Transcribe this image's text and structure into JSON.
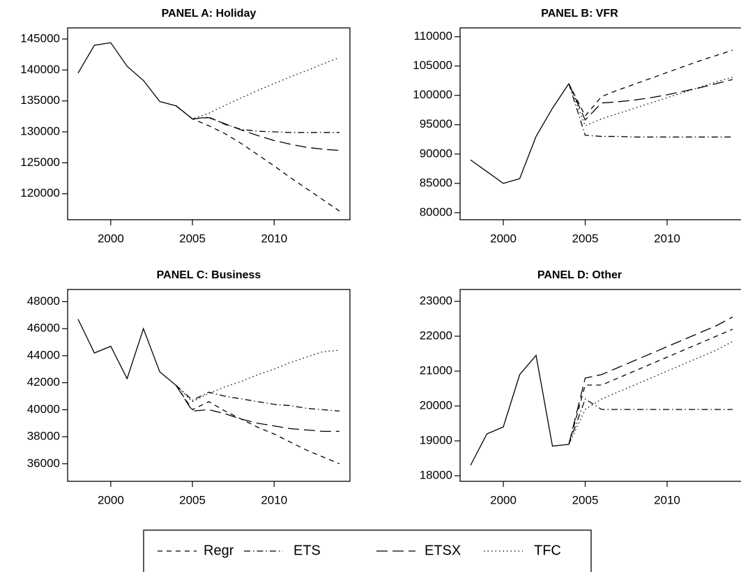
{
  "chart_data": [
    {
      "type": "line",
      "title": "PANEL A: Holiday",
      "x": [
        1998,
        1999,
        2000,
        2001,
        2002,
        2003,
        2004,
        2005,
        2006,
        2007,
        2008,
        2009,
        2010,
        2011,
        2012,
        2013,
        2014
      ],
      "xlim": [
        1997.36,
        2014.64
      ],
      "xticks": [
        2000,
        2005,
        2010
      ],
      "ylim": [
        115800,
        146800
      ],
      "yticks": [
        120000,
        125000,
        130000,
        135000,
        140000,
        145000
      ],
      "series": [
        {
          "color": "#000000",
          "dash": "solid",
          "values": [
            139500,
            144000,
            144400,
            140600,
            138300,
            134900,
            134200,
            null,
            null,
            null,
            null,
            null,
            null,
            null,
            null,
            null,
            null
          ]
        },
        {
          "name": "Regr",
          "color": "#000000",
          "dash": "dashed",
          "values": [
            null,
            null,
            null,
            null,
            null,
            null,
            134200,
            132100,
            131000,
            129700,
            128100,
            126300,
            124500,
            122600,
            120800,
            119000,
            117200
          ]
        },
        {
          "name": "ETS",
          "color": "#000000",
          "dash": "dotdash",
          "values": [
            null,
            null,
            null,
            null,
            null,
            null,
            134200,
            132100,
            132400,
            131200,
            130400,
            130100,
            130000,
            129900,
            129900,
            129900,
            129900
          ]
        },
        {
          "name": "ETSX",
          "color": "#000000",
          "dash": "longdash",
          "values": [
            null,
            null,
            null,
            null,
            null,
            null,
            134200,
            132100,
            132300,
            131300,
            130300,
            129400,
            128600,
            128000,
            127500,
            127200,
            127000
          ]
        },
        {
          "name": "TFC",
          "color": "#000000",
          "dash": "dotted",
          "values": [
            null,
            null,
            null,
            null,
            null,
            null,
            134200,
            132100,
            133000,
            134300,
            135500,
            136700,
            137800,
            138900,
            139900,
            141000,
            142000
          ]
        }
      ]
    },
    {
      "type": "line",
      "title": "PANEL B: VFR",
      "x": [
        1998,
        1999,
        2000,
        2001,
        2002,
        2003,
        2004,
        2005,
        2006,
        2007,
        2008,
        2009,
        2010,
        2011,
        2012,
        2013,
        2014
      ],
      "xlim": [
        1997.36,
        2014.64
      ],
      "xticks": [
        2000,
        2005,
        2010
      ],
      "ylim": [
        78800,
        111500
      ],
      "yticks": [
        80000,
        85000,
        90000,
        95000,
        100000,
        105000,
        110000
      ],
      "series": [
        {
          "color": "#000000",
          "dash": "solid",
          "values": [
            89000,
            87000,
            85000,
            85800,
            93000,
            97800,
            102000,
            null,
            null,
            null,
            null,
            null,
            null,
            null,
            null,
            null,
            null
          ]
        },
        {
          "name": "Regr",
          "color": "#000000",
          "dash": "dashed",
          "values": [
            null,
            null,
            null,
            null,
            null,
            null,
            102000,
            96500,
            99800,
            100900,
            101900,
            102900,
            103900,
            104900,
            105900,
            106800,
            107700
          ]
        },
        {
          "name": "ETS",
          "color": "#000000",
          "dash": "dotdash",
          "values": [
            null,
            null,
            null,
            null,
            null,
            null,
            102000,
            93200,
            93000,
            93000,
            92900,
            92900,
            92900,
            92900,
            92900,
            92900,
            92900
          ]
        },
        {
          "name": "ETSX",
          "color": "#000000",
          "dash": "longdash",
          "values": [
            null,
            null,
            null,
            null,
            null,
            null,
            102000,
            95800,
            98700,
            98900,
            99200,
            99600,
            100100,
            100700,
            101300,
            102000,
            102700
          ]
        },
        {
          "name": "TFC",
          "color": "#000000",
          "dash": "dotted",
          "values": [
            null,
            null,
            null,
            null,
            null,
            null,
            102000,
            94800,
            96000,
            96900,
            97800,
            98700,
            99600,
            100500,
            101400,
            102300,
            103100
          ]
        }
      ]
    },
    {
      "type": "line",
      "title": "PANEL C: Business",
      "x": [
        1998,
        1999,
        2000,
        2001,
        2002,
        2003,
        2004,
        2005,
        2006,
        2007,
        2008,
        2009,
        2010,
        2011,
        2012,
        2013,
        2014
      ],
      "xlim": [
        1997.36,
        2014.64
      ],
      "xticks": [
        2000,
        2005,
        2010
      ],
      "ylim": [
        34700,
        48900
      ],
      "yticks": [
        36000,
        38000,
        40000,
        42000,
        44000,
        46000,
        48000
      ],
      "series": [
        {
          "color": "#000000",
          "dash": "solid",
          "values": [
            46700,
            44200,
            44700,
            42300,
            46000,
            42800,
            41800,
            null,
            null,
            null,
            null,
            null,
            null,
            null,
            null,
            null,
            null
          ]
        },
        {
          "name": "Regr",
          "color": "#000000",
          "dash": "dashed",
          "values": [
            null,
            null,
            null,
            null,
            null,
            null,
            41800,
            40000,
            40600,
            39900,
            39300,
            38700,
            38200,
            37600,
            37000,
            36500,
            36000
          ]
        },
        {
          "name": "ETS",
          "color": "#000000",
          "dash": "dotdash",
          "values": [
            null,
            null,
            null,
            null,
            null,
            null,
            41800,
            40700,
            41300,
            41000,
            40800,
            40600,
            40400,
            40300,
            40100,
            40000,
            39900
          ]
        },
        {
          "name": "ETSX",
          "color": "#000000",
          "dash": "longdash",
          "values": [
            null,
            null,
            null,
            null,
            null,
            null,
            41800,
            39900,
            40000,
            39700,
            39300,
            39000,
            38800,
            38600,
            38500,
            38400,
            38400
          ]
        },
        {
          "name": "TFC",
          "color": "#000000",
          "dash": "dotted",
          "values": [
            null,
            null,
            null,
            null,
            null,
            null,
            41800,
            40600,
            41200,
            41700,
            42100,
            42600,
            43000,
            43500,
            43900,
            44300,
            44400
          ]
        }
      ]
    },
    {
      "type": "line",
      "title": "PANEL D: Other",
      "x": [
        1998,
        1999,
        2000,
        2001,
        2002,
        2003,
        2004,
        2005,
        2006,
        2007,
        2008,
        2009,
        2010,
        2011,
        2012,
        2013,
        2014
      ],
      "xlim": [
        1997.36,
        2014.64
      ],
      "xticks": [
        2000,
        2005,
        2010
      ],
      "ylim": [
        17840,
        23340
      ],
      "yticks": [
        18000,
        19000,
        20000,
        21000,
        22000,
        23000
      ],
      "series": [
        {
          "color": "#000000",
          "dash": "solid",
          "values": [
            18300,
            19200,
            19400,
            20900,
            21450,
            18850,
            18900,
            null,
            null,
            null,
            null,
            null,
            null,
            null,
            null,
            null,
            null
          ]
        },
        {
          "name": "Regr",
          "color": "#000000",
          "dash": "dashed",
          "values": [
            null,
            null,
            null,
            null,
            null,
            null,
            18900,
            20600,
            20600,
            20800,
            21000,
            21200,
            21400,
            21600,
            21800,
            22000,
            22200
          ]
        },
        {
          "name": "ETS",
          "color": "#000000",
          "dash": "dotdash",
          "values": [
            null,
            null,
            null,
            null,
            null,
            null,
            18900,
            20200,
            19900,
            19900,
            19900,
            19900,
            19900,
            19900,
            19900,
            19900,
            19900
          ]
        },
        {
          "name": "ETSX",
          "color": "#000000",
          "dash": "longdash",
          "values": [
            null,
            null,
            null,
            null,
            null,
            null,
            18900,
            20800,
            20900,
            21100,
            21300,
            21500,
            21700,
            21900,
            22100,
            22300,
            22550
          ]
        },
        {
          "name": "TFC",
          "color": "#000000",
          "dash": "dotted",
          "values": [
            null,
            null,
            null,
            null,
            null,
            null,
            18900,
            19900,
            20200,
            20400,
            20600,
            20800,
            21000,
            21200,
            21400,
            21600,
            21850
          ]
        }
      ]
    }
  ]
}
